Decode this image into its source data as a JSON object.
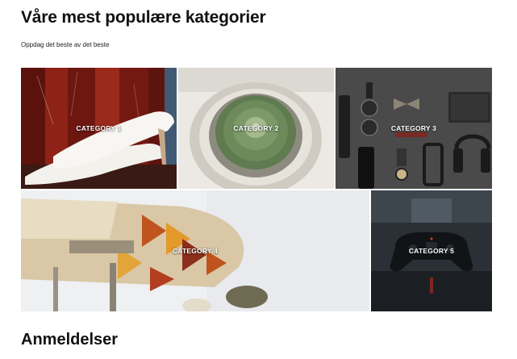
{
  "categories_section": {
    "title": "Våre mest populære kategorier",
    "subtitle": "Oppdag det beste av det beste"
  },
  "categories": [
    {
      "label": "CATEGORY 1",
      "image": "white-heels-photo"
    },
    {
      "label": "CATEGORY 2",
      "image": "cactus-photo"
    },
    {
      "label": "CATEGORY 3",
      "image": "accessories-flatlay-photo"
    },
    {
      "label": "CATEGORY 4",
      "image": "patterned-shoe-photo"
    },
    {
      "label": "CATEGORY 5",
      "image": "game-controller-photo"
    }
  ],
  "reviews_section": {
    "title": "Anmeldelser"
  }
}
